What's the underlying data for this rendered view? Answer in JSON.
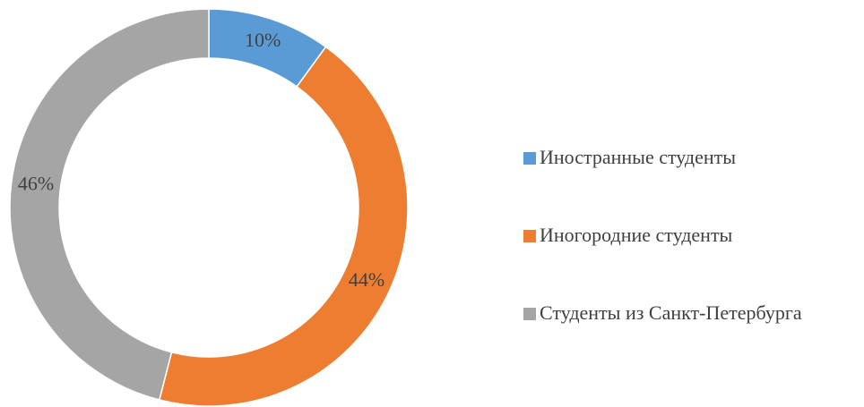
{
  "chart_data": {
    "type": "donut",
    "categories": [
      "Иностранные студенты",
      "Иногородние студенты",
      "Студенты из Санкт-Петербурга"
    ],
    "values": [
      10,
      44,
      46
    ],
    "value_labels": [
      "10%",
      "44%",
      "46%"
    ],
    "colors": [
      "#5b9bd5",
      "#ed7d31",
      "#a5a5a5"
    ],
    "legend": "right"
  }
}
